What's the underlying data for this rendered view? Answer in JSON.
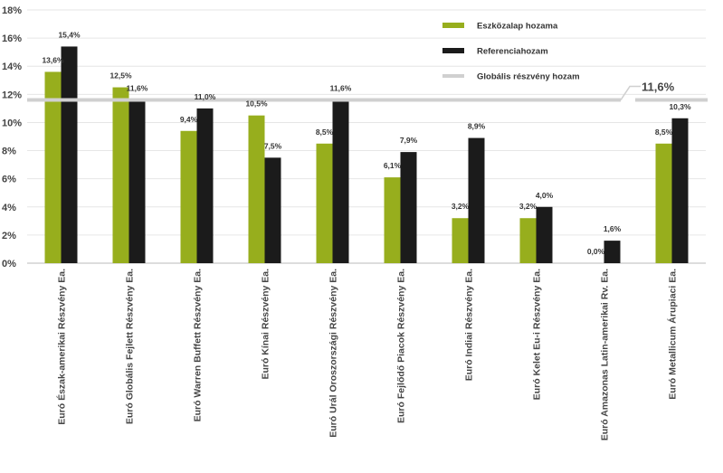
{
  "chart_data": {
    "type": "bar",
    "title": "",
    "xlabel": "",
    "ylabel": "",
    "ylim": [
      0,
      18
    ],
    "y_ticks": [
      "0%",
      "2%",
      "4%",
      "6%",
      "8%",
      "10%",
      "12%",
      "14%",
      "16%",
      "18%"
    ],
    "grid": true,
    "legend_position": "top-right",
    "categories": [
      "Euró Észak-amerikai Részvény Ea.",
      "Euró Globális Fejlett Részvény Ea.",
      "Euró Warren Buffett Részvény Ea.",
      "Euró Kínai Részvény Ea.",
      "Euró Urál Oroszországi Részvény Ea.",
      "Euró Fejlődő Piacok Részvény Ea.",
      "Euró Indiai Részvény Ea.",
      "Euró Kelet Eu-i Részvény Ea.",
      "Euró Amazonas Latin-amerikai Rv. Ea.",
      "Euró Metallicum Árupiaci Ea."
    ],
    "series": [
      {
        "name": "Eszközalap hozama",
        "color": "#97ae1d",
        "values": [
          13.6,
          12.5,
          9.4,
          10.5,
          8.5,
          6.1,
          3.2,
          3.2,
          0.0,
          8.5
        ],
        "labels": [
          "13,6%",
          "12,5%",
          "9,4%",
          "10,5%",
          "8,5%",
          "6,1%",
          "3,2%",
          "3,2%",
          "0,0%",
          "8,5%"
        ]
      },
      {
        "name": "Referenciahozam",
        "color": "#1b1b1b",
        "values": [
          15.4,
          11.6,
          11.0,
          7.5,
          11.6,
          7.9,
          8.9,
          4.0,
          1.6,
          10.3
        ],
        "labels": [
          "15,4%",
          "11,6%",
          "11,0%",
          "7,5%",
          "11,6%",
          "7,9%",
          "8,9%",
          "4,0%",
          "1,6%",
          "10,3%"
        ]
      }
    ],
    "reference_line": {
      "name": "Globális részvény  hozam",
      "value": 11.6,
      "label": "11,6%",
      "color": "#d0d0d0"
    }
  }
}
